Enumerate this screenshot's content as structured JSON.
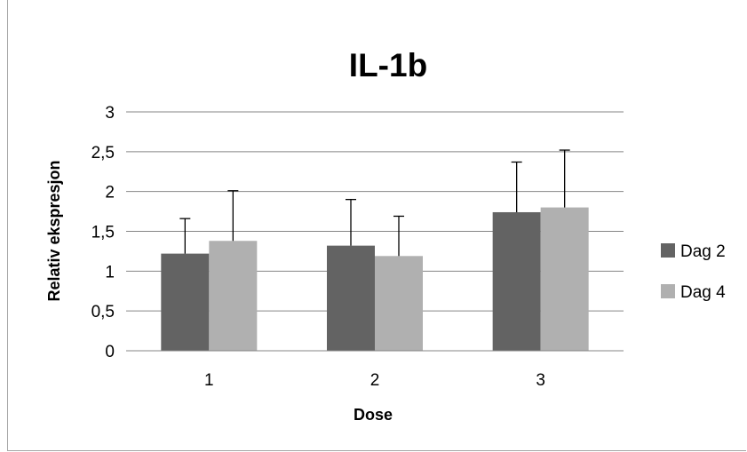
{
  "chart_data": {
    "type": "bar",
    "title": "IL-1b",
    "xlabel": "Dose",
    "ylabel": "Relativ ekspresjon",
    "categories": [
      "1",
      "2",
      "3"
    ],
    "ylim": [
      0,
      3
    ],
    "yticks": [
      "0",
      "0,5",
      "1",
      "1,5",
      "2",
      "2,5",
      "3"
    ],
    "ytick_values": [
      0,
      0.5,
      1,
      1.5,
      2,
      2.5,
      3
    ],
    "grid": true,
    "legend_position": "right",
    "series": [
      {
        "name": "Dag 2",
        "color": "#636363",
        "values": [
          1.22,
          1.32,
          1.74
        ],
        "error": [
          0.44,
          0.58,
          0.63
        ]
      },
      {
        "name": "Dag 4",
        "color": "#b0b0b0",
        "values": [
          1.38,
          1.19,
          1.8
        ],
        "error": [
          0.63,
          0.5,
          0.72
        ]
      }
    ]
  }
}
